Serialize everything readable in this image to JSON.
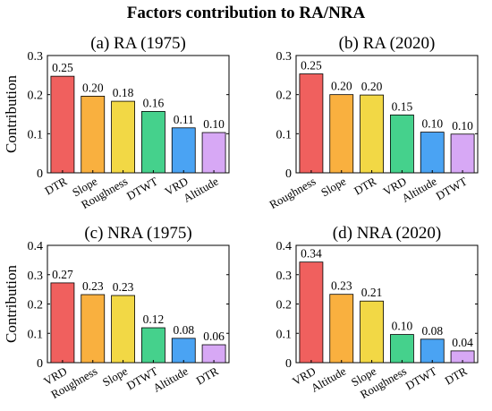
{
  "title": "Factors contribution to RA/NRA",
  "colors": {
    "red": "#f0605e",
    "orange": "#f9b03f",
    "yellow": "#f2d845",
    "green": "#45d18c",
    "blue": "#4aa3f3",
    "purple": "#d7a8f5"
  },
  "chart_data": [
    {
      "type": "bar",
      "title": "(a) RA (1975)",
      "ylabel": "Contribution",
      "ylim": [
        0,
        0.3
      ],
      "yticks": [
        "0",
        "0.1",
        "0.2",
        "0.3"
      ],
      "grid": false,
      "categories": [
        "DTR",
        "Slope",
        "Roughness",
        "DTWT",
        "VRD",
        "Altitude"
      ],
      "values": [
        0.25,
        0.2,
        0.18,
        0.16,
        0.11,
        0.1
      ],
      "value_labels": [
        "0.25",
        "0.20",
        "0.18",
        "0.16",
        "0.11",
        "0.10"
      ],
      "heights": [
        0.247,
        0.196,
        0.183,
        0.157,
        0.115,
        0.103
      ]
    },
    {
      "type": "bar",
      "title": "(b) RA (2020)",
      "ylabel": "",
      "ylim": [
        0,
        0.3
      ],
      "yticks": [
        "0",
        "0.1",
        "0.2",
        "0.3"
      ],
      "grid": false,
      "categories": [
        "Roughness",
        "Slope",
        "DTR",
        "VRD",
        "Altitude",
        "DTWT"
      ],
      "values": [
        0.25,
        0.2,
        0.2,
        0.15,
        0.1,
        0.1
      ],
      "value_labels": [
        "0.25",
        "0.20",
        "0.20",
        "0.15",
        "0.10",
        "0.10"
      ],
      "heights": [
        0.253,
        0.2,
        0.199,
        0.148,
        0.104,
        0.099
      ]
    },
    {
      "type": "bar",
      "title": "(c) NRA (1975)",
      "ylabel": "Contribution",
      "ylim": [
        0,
        0.4
      ],
      "yticks": [
        "0",
        "0.1",
        "0.2",
        "0.3",
        "0.4"
      ],
      "grid": false,
      "categories": [
        "VRD",
        "Roughness",
        "Slope",
        "DTWT",
        "Altitude",
        "DTR"
      ],
      "values": [
        0.27,
        0.23,
        0.23,
        0.12,
        0.08,
        0.06
      ],
      "value_labels": [
        "0.27",
        "0.23",
        "0.23",
        "0.12",
        "0.08",
        "0.06"
      ],
      "heights": [
        0.272,
        0.232,
        0.229,
        0.119,
        0.083,
        0.061
      ]
    },
    {
      "type": "bar",
      "title": "(d) NRA (2020)",
      "ylabel": "",
      "ylim": [
        0,
        0.4
      ],
      "yticks": [
        "0",
        "0.1",
        "0.2",
        "0.3",
        "0.4"
      ],
      "grid": false,
      "categories": [
        "VRD",
        "Altitude",
        "Slope",
        "Roughness",
        "DTWT",
        "DTR"
      ],
      "values": [
        0.34,
        0.23,
        0.21,
        0.1,
        0.08,
        0.04
      ],
      "value_labels": [
        "0.34",
        "0.23",
        "0.21",
        "0.10",
        "0.08",
        "0.04"
      ],
      "heights": [
        0.343,
        0.233,
        0.21,
        0.096,
        0.08,
        0.04
      ]
    }
  ]
}
